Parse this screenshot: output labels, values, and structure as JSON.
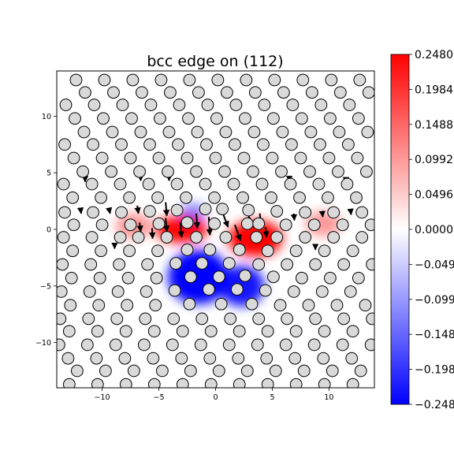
{
  "chart_data": {
    "type": "heatmap",
    "title": "bcc edge on (112)",
    "xlabel": "",
    "ylabel": "",
    "xlim": [
      -14,
      14
    ],
    "ylim": [
      -14,
      14
    ],
    "x_ticks": [
      -10,
      -5,
      0,
      5,
      10
    ],
    "y_ticks": [
      10,
      5,
      0,
      -5,
      -10
    ],
    "x_tick_labels": [
      "−10",
      "−5",
      "0",
      "5",
      "10"
    ],
    "y_tick_labels": [
      "10",
      "5",
      "0",
      "−5",
      "−10"
    ],
    "grid": false,
    "colormap": "bwr",
    "colorbar": {
      "min": -0.248,
      "max": 0.248,
      "ticks": [
        0.248,
        0.1984,
        0.1488,
        0.0992,
        0.0496,
        0.0,
        -0.0496,
        -0.0992,
        -0.1488,
        -0.1984,
        -0.248
      ],
      "tick_labels": [
        "0.2480",
        "0.1984",
        "0.1488",
        "0.0992",
        "0.0496",
        "0.0000",
        "−0.049",
        "−0.099",
        "−0.148",
        "−0.198",
        "−0.248"
      ]
    },
    "field_blobs": [
      {
        "sign": "positive",
        "x": 3.5,
        "y": -0.8,
        "sx": 2.4,
        "sy": 1.6,
        "value": 0.248
      },
      {
        "sign": "positive",
        "x": -3.0,
        "y": 0.0,
        "sx": 2.3,
        "sy": 1.2,
        "value": 0.24
      },
      {
        "sign": "positive",
        "x": -7.2,
        "y": 0.3,
        "sx": 1.6,
        "sy": 1.1,
        "value": 0.06
      },
      {
        "sign": "positive",
        "x": 9.5,
        "y": 0.5,
        "sx": 1.6,
        "sy": 1.1,
        "value": 0.05
      },
      {
        "sign": "negative",
        "x": -1.5,
        "y": -4.2,
        "sx": 2.7,
        "sy": 2.4,
        "value": -0.248
      },
      {
        "sign": "negative",
        "x": 2.3,
        "y": -5.0,
        "sx": 2.0,
        "sy": 1.8,
        "value": -0.22
      },
      {
        "sign": "negative",
        "x": -2.0,
        "y": 1.5,
        "sx": 1.2,
        "sy": 0.8,
        "value": -0.08
      }
    ],
    "atoms": [
      {
        "x": -12.3,
        "y": 13.2
      },
      {
        "x": -9.8,
        "y": 13.2
      },
      {
        "x": -7.3,
        "y": 13.2
      },
      {
        "x": -4.8,
        "y": 13.2
      },
      {
        "x": -2.3,
        "y": 13.2
      },
      {
        "x": 0.2,
        "y": 13.2
      },
      {
        "x": 2.7,
        "y": 13.2
      },
      {
        "x": 5.2,
        "y": 13.2
      },
      {
        "x": 7.7,
        "y": 13.2
      },
      {
        "x": 10.2,
        "y": 13.2
      },
      {
        "x": 12.7,
        "y": 13.2
      },
      {
        "x": -11.5,
        "y": 12.1
      },
      {
        "x": -9.0,
        "y": 12.1
      },
      {
        "x": -6.5,
        "y": 12.1
      },
      {
        "x": -4.0,
        "y": 12.1
      },
      {
        "x": -1.5,
        "y": 12.1
      },
      {
        "x": 1.0,
        "y": 12.1
      },
      {
        "x": 3.5,
        "y": 12.1
      },
      {
        "x": 6.0,
        "y": 12.1
      },
      {
        "x": 8.5,
        "y": 12.1
      },
      {
        "x": 11.0,
        "y": 12.1
      },
      {
        "x": 13.5,
        "y": 12.1
      },
      {
        "x": -13.2,
        "y": 11.0
      },
      {
        "x": -10.7,
        "y": 11.0
      },
      {
        "x": -8.2,
        "y": 11.0
      },
      {
        "x": -5.7,
        "y": 11.0
      },
      {
        "x": -3.2,
        "y": 11.0
      },
      {
        "x": -0.7,
        "y": 11.0
      },
      {
        "x": 1.8,
        "y": 11.0
      },
      {
        "x": 4.3,
        "y": 11.0
      },
      {
        "x": 6.8,
        "y": 11.0
      },
      {
        "x": 9.3,
        "y": 11.0
      },
      {
        "x": 11.8,
        "y": 11.0
      },
      {
        "x": -12.4,
        "y": 9.8
      },
      {
        "x": -9.9,
        "y": 9.8
      },
      {
        "x": -7.4,
        "y": 9.8
      },
      {
        "x": -4.9,
        "y": 9.8
      },
      {
        "x": -2.4,
        "y": 9.8
      },
      {
        "x": 0.1,
        "y": 9.8
      },
      {
        "x": 2.6,
        "y": 9.8
      },
      {
        "x": 5.1,
        "y": 9.8
      },
      {
        "x": 7.6,
        "y": 9.8
      },
      {
        "x": 10.1,
        "y": 9.8
      },
      {
        "x": 12.6,
        "y": 9.8
      },
      {
        "x": -11.6,
        "y": 8.6
      },
      {
        "x": -9.1,
        "y": 8.6
      },
      {
        "x": -6.6,
        "y": 8.6
      },
      {
        "x": -4.1,
        "y": 8.6
      },
      {
        "x": -1.6,
        "y": 8.6
      },
      {
        "x": 0.9,
        "y": 8.6
      },
      {
        "x": 3.4,
        "y": 8.6
      },
      {
        "x": 5.9,
        "y": 8.6
      },
      {
        "x": 8.4,
        "y": 8.6
      },
      {
        "x": 10.9,
        "y": 8.6
      },
      {
        "x": 13.4,
        "y": 8.6
      },
      {
        "x": -13.3,
        "y": 7.5
      },
      {
        "x": -10.8,
        "y": 7.5
      },
      {
        "x": -8.3,
        "y": 7.5
      },
      {
        "x": -5.8,
        "y": 7.5
      },
      {
        "x": -3.3,
        "y": 7.5
      },
      {
        "x": -0.8,
        "y": 7.5
      },
      {
        "x": 1.7,
        "y": 7.5
      },
      {
        "x": 4.2,
        "y": 7.5
      },
      {
        "x": 6.7,
        "y": 7.5
      },
      {
        "x": 9.2,
        "y": 7.5
      },
      {
        "x": 11.7,
        "y": 7.5
      },
      {
        "x": -12.5,
        "y": 6.3
      },
      {
        "x": -10.0,
        "y": 6.3
      },
      {
        "x": -7.5,
        "y": 6.3
      },
      {
        "x": -5.0,
        "y": 6.3
      },
      {
        "x": -2.5,
        "y": 6.3
      },
      {
        "x": 0.0,
        "y": 6.3
      },
      {
        "x": 2.5,
        "y": 6.3
      },
      {
        "x": 5.0,
        "y": 6.3
      },
      {
        "x": 7.5,
        "y": 6.3
      },
      {
        "x": 10.0,
        "y": 6.3
      },
      {
        "x": 12.5,
        "y": 6.3
      },
      {
        "x": -11.7,
        "y": 5.1
      },
      {
        "x": -9.2,
        "y": 5.1
      },
      {
        "x": -6.7,
        "y": 5.1
      },
      {
        "x": -4.2,
        "y": 5.1
      },
      {
        "x": -1.7,
        "y": 5.1
      },
      {
        "x": 0.8,
        "y": 5.1
      },
      {
        "x": 3.3,
        "y": 5.1
      },
      {
        "x": 5.8,
        "y": 5.1
      },
      {
        "x": 8.3,
        "y": 5.1
      },
      {
        "x": 10.8,
        "y": 5.1
      },
      {
        "x": 13.3,
        "y": 5.1
      },
      {
        "x": -13.4,
        "y": 4.0
      },
      {
        "x": -10.9,
        "y": 4.0
      },
      {
        "x": -8.4,
        "y": 4.0
      },
      {
        "x": -5.9,
        "y": 4.0
      },
      {
        "x": -3.4,
        "y": 4.0
      },
      {
        "x": -0.9,
        "y": 4.0
      },
      {
        "x": 1.6,
        "y": 4.0
      },
      {
        "x": 4.1,
        "y": 4.0
      },
      {
        "x": 6.6,
        "y": 4.0
      },
      {
        "x": 9.1,
        "y": 4.0
      },
      {
        "x": 11.6,
        "y": 4.0
      },
      {
        "x": -12.6,
        "y": 2.8
      },
      {
        "x": -10.1,
        "y": 2.8
      },
      {
        "x": -7.6,
        "y": 2.8
      },
      {
        "x": -5.1,
        "y": 2.8
      },
      {
        "x": -2.6,
        "y": 2.8
      },
      {
        "x": -0.1,
        "y": 2.8
      },
      {
        "x": 2.4,
        "y": 2.8
      },
      {
        "x": 4.9,
        "y": 2.8
      },
      {
        "x": 7.4,
        "y": 2.8
      },
      {
        "x": 9.9,
        "y": 2.8
      },
      {
        "x": 12.4,
        "y": 2.8
      },
      {
        "x": -13.3,
        "y": 1.5
      },
      {
        "x": -10.8,
        "y": 1.5
      },
      {
        "x": -8.3,
        "y": 1.5
      },
      {
        "x": -5.8,
        "y": 1.6
      },
      {
        "x": -3.4,
        "y": 1.7
      },
      {
        "x": -0.9,
        "y": 1.8
      },
      {
        "x": 0.6,
        "y": 1.8
      },
      {
        "x": 2.9,
        "y": 1.7
      },
      {
        "x": 5.4,
        "y": 1.6
      },
      {
        "x": 7.9,
        "y": 1.5
      },
      {
        "x": 10.4,
        "y": 1.5
      },
      {
        "x": 12.9,
        "y": 1.5
      },
      {
        "x": -12.5,
        "y": 0.4
      },
      {
        "x": -10.0,
        "y": 0.4
      },
      {
        "x": -7.5,
        "y": 0.4
      },
      {
        "x": -5.0,
        "y": 0.5
      },
      {
        "x": -2.5,
        "y": 0.6
      },
      {
        "x": -0.1,
        "y": 0.5
      },
      {
        "x": 2.8,
        "y": 0.5
      },
      {
        "x": 3.8,
        "y": 0.5
      },
      {
        "x": 6.2,
        "y": 0.4
      },
      {
        "x": 8.7,
        "y": 0.4
      },
      {
        "x": 11.2,
        "y": 0.4
      },
      {
        "x": 13.7,
        "y": 0.4
      },
      {
        "x": -13.4,
        "y": -0.7
      },
      {
        "x": -10.9,
        "y": -0.7
      },
      {
        "x": -8.4,
        "y": -0.7
      },
      {
        "x": -6.8,
        "y": -0.7
      },
      {
        "x": -4.3,
        "y": -0.7
      },
      {
        "x": -1.7,
        "y": -0.7
      },
      {
        "x": 0.9,
        "y": -0.7
      },
      {
        "x": 3.6,
        "y": -0.7
      },
      {
        "x": 5.4,
        "y": -0.7
      },
      {
        "x": 7.9,
        "y": -0.7
      },
      {
        "x": 10.4,
        "y": -0.7
      },
      {
        "x": 12.9,
        "y": -0.7
      },
      {
        "x": -12.6,
        "y": -1.9
      },
      {
        "x": -10.1,
        "y": -1.9
      },
      {
        "x": -7.6,
        "y": -1.9
      },
      {
        "x": -5.1,
        "y": -1.9
      },
      {
        "x": -2.5,
        "y": -1.8
      },
      {
        "x": -0.5,
        "y": -1.8
      },
      {
        "x": 2.1,
        "y": -1.8
      },
      {
        "x": 4.6,
        "y": -1.9
      },
      {
        "x": 7.1,
        "y": -1.9
      },
      {
        "x": 9.6,
        "y": -1.9
      },
      {
        "x": 12.1,
        "y": -1.9
      },
      {
        "x": -13.5,
        "y": -3.1
      },
      {
        "x": -11.0,
        "y": -3.1
      },
      {
        "x": -8.5,
        "y": -3.1
      },
      {
        "x": -6.0,
        "y": -3.1
      },
      {
        "x": -3.5,
        "y": -3.0
      },
      {
        "x": -1.2,
        "y": -3.0
      },
      {
        "x": 1.2,
        "y": -3.0
      },
      {
        "x": 3.8,
        "y": -3.1
      },
      {
        "x": 6.3,
        "y": -3.1
      },
      {
        "x": 8.8,
        "y": -3.1
      },
      {
        "x": 11.3,
        "y": -3.1
      },
      {
        "x": 13.8,
        "y": -3.1
      },
      {
        "x": -12.7,
        "y": -4.3
      },
      {
        "x": -10.2,
        "y": -4.3
      },
      {
        "x": -7.7,
        "y": -4.3
      },
      {
        "x": -5.2,
        "y": -4.3
      },
      {
        "x": -2.2,
        "y": -4.2
      },
      {
        "x": 0.3,
        "y": -4.2
      },
      {
        "x": 2.6,
        "y": -4.1
      },
      {
        "x": 5.1,
        "y": -4.2
      },
      {
        "x": 7.6,
        "y": -4.3
      },
      {
        "x": 10.1,
        "y": -4.3
      },
      {
        "x": 12.6,
        "y": -4.3
      },
      {
        "x": -13.6,
        "y": -5.5
      },
      {
        "x": -11.1,
        "y": -5.5
      },
      {
        "x": -8.6,
        "y": -5.5
      },
      {
        "x": -6.1,
        "y": -5.5
      },
      {
        "x": -3.6,
        "y": -5.4
      },
      {
        "x": -0.6,
        "y": -5.3
      },
      {
        "x": 1.9,
        "y": -5.3
      },
      {
        "x": 4.4,
        "y": -5.4
      },
      {
        "x": 6.9,
        "y": -5.5
      },
      {
        "x": 9.4,
        "y": -5.5
      },
      {
        "x": 11.9,
        "y": -5.5
      },
      {
        "x": -12.8,
        "y": -6.7
      },
      {
        "x": -10.3,
        "y": -6.7
      },
      {
        "x": -7.8,
        "y": -6.7
      },
      {
        "x": -5.3,
        "y": -6.7
      },
      {
        "x": -2.3,
        "y": -6.6
      },
      {
        "x": 0.5,
        "y": -6.6
      },
      {
        "x": 3.2,
        "y": -6.6
      },
      {
        "x": 5.7,
        "y": -6.7
      },
      {
        "x": 8.2,
        "y": -6.7
      },
      {
        "x": 10.7,
        "y": -6.7
      },
      {
        "x": 13.2,
        "y": -6.7
      },
      {
        "x": -13.7,
        "y": -7.9
      },
      {
        "x": -11.2,
        "y": -7.9
      },
      {
        "x": -8.7,
        "y": -7.9
      },
      {
        "x": -6.2,
        "y": -7.9
      },
      {
        "x": -3.7,
        "y": -7.9
      },
      {
        "x": -1.2,
        "y": -7.9
      },
      {
        "x": 1.3,
        "y": -7.9
      },
      {
        "x": 3.8,
        "y": -7.9
      },
      {
        "x": 6.3,
        "y": -7.9
      },
      {
        "x": 8.8,
        "y": -7.9
      },
      {
        "x": 11.3,
        "y": -7.9
      },
      {
        "x": 13.8,
        "y": -7.9
      },
      {
        "x": -12.9,
        "y": -9.0
      },
      {
        "x": -10.4,
        "y": -9.0
      },
      {
        "x": -7.9,
        "y": -9.0
      },
      {
        "x": -5.4,
        "y": -9.0
      },
      {
        "x": -2.9,
        "y": -9.0
      },
      {
        "x": -0.4,
        "y": -9.0
      },
      {
        "x": 2.1,
        "y": -9.0
      },
      {
        "x": 4.6,
        "y": -9.0
      },
      {
        "x": 7.1,
        "y": -9.0
      },
      {
        "x": 9.6,
        "y": -9.0
      },
      {
        "x": 12.1,
        "y": -9.0
      },
      {
        "x": -13.8,
        "y": -10.2
      },
      {
        "x": -11.3,
        "y": -10.2
      },
      {
        "x": -8.8,
        "y": -10.2
      },
      {
        "x": -6.3,
        "y": -10.2
      },
      {
        "x": -3.8,
        "y": -10.2
      },
      {
        "x": -1.3,
        "y": -10.2
      },
      {
        "x": 1.2,
        "y": -10.2
      },
      {
        "x": 3.7,
        "y": -10.2
      },
      {
        "x": 6.2,
        "y": -10.2
      },
      {
        "x": 8.7,
        "y": -10.2
      },
      {
        "x": 11.2,
        "y": -10.2
      },
      {
        "x": 13.7,
        "y": -10.2
      },
      {
        "x": -13.0,
        "y": -11.4
      },
      {
        "x": -10.5,
        "y": -11.4
      },
      {
        "x": -8.0,
        "y": -11.4
      },
      {
        "x": -5.5,
        "y": -11.4
      },
      {
        "x": -3.0,
        "y": -11.4
      },
      {
        "x": -0.5,
        "y": -11.4
      },
      {
        "x": 2.0,
        "y": -11.4
      },
      {
        "x": 4.5,
        "y": -11.4
      },
      {
        "x": 7.0,
        "y": -11.4
      },
      {
        "x": 9.5,
        "y": -11.4
      },
      {
        "x": 12.0,
        "y": -11.4
      },
      {
        "x": -12.2,
        "y": -12.5
      },
      {
        "x": -9.7,
        "y": -12.5
      },
      {
        "x": -7.2,
        "y": -12.5
      },
      {
        "x": -4.7,
        "y": -12.5
      },
      {
        "x": -2.2,
        "y": -12.5
      },
      {
        "x": 0.3,
        "y": -12.5
      },
      {
        "x": 2.8,
        "y": -12.5
      },
      {
        "x": 5.3,
        "y": -12.5
      },
      {
        "x": 7.8,
        "y": -12.5
      },
      {
        "x": 10.3,
        "y": -12.5
      },
      {
        "x": 12.8,
        "y": -12.5
      },
      {
        "x": -12.9,
        "y": -13.7
      },
      {
        "x": -10.4,
        "y": -13.7
      },
      {
        "x": -7.9,
        "y": -13.7
      },
      {
        "x": -5.4,
        "y": -13.7
      },
      {
        "x": -2.9,
        "y": -13.7
      },
      {
        "x": -0.4,
        "y": -13.7
      },
      {
        "x": 2.1,
        "y": -13.7
      },
      {
        "x": 4.6,
        "y": -13.7
      },
      {
        "x": 7.1,
        "y": -13.7
      },
      {
        "x": 9.6,
        "y": -13.7
      },
      {
        "x": 12.1,
        "y": -13.7
      }
    ],
    "displacement_vectors": [
      {
        "x": -11.9,
        "y": 1.8,
        "dx": 0.05,
        "dy": -0.4
      },
      {
        "x": -9.4,
        "y": 1.9,
        "dx": 0.1,
        "dy": -0.5
      },
      {
        "x": -6.9,
        "y": 2.1,
        "dx": 0.1,
        "dy": -0.7
      },
      {
        "x": -4.4,
        "y": 2.4,
        "dx": 0.1,
        "dy": -1.2
      },
      {
        "x": -6.7,
        "y": 0.6,
        "dx": 0.1,
        "dy": -0.8
      },
      {
        "x": -4.4,
        "y": 1.0,
        "dx": 0.1,
        "dy": -1.2
      },
      {
        "x": -1.7,
        "y": 1.4,
        "dx": 0.1,
        "dy": -1.3
      },
      {
        "x": -0.6,
        "y": 1.1,
        "dx": 0.1,
        "dy": -1.6
      },
      {
        "x": -3.1,
        "y": 0.6,
        "dx": 0.1,
        "dy": -1.3
      },
      {
        "x": -5.6,
        "y": 0.1,
        "dx": 0.05,
        "dy": -0.9
      },
      {
        "x": 0.5,
        "y": 1.8,
        "dx": 0.6,
        "dy": -1.6
      },
      {
        "x": 1.7,
        "y": 0.4,
        "dx": 0.5,
        "dy": -1.4
      },
      {
        "x": 2.9,
        "y": 1.2,
        "dx": 0.5,
        "dy": -1.0
      },
      {
        "x": 3.9,
        "y": 1.4,
        "dx": 0.1,
        "dy": -1.0
      },
      {
        "x": 4.4,
        "y": 0.2,
        "dx": 0.1,
        "dy": -0.9
      },
      {
        "x": 6.9,
        "y": 1.4,
        "dx": 0.05,
        "dy": -0.6
      },
      {
        "x": 9.4,
        "y": 1.6,
        "dx": 0.05,
        "dy": -0.5
      },
      {
        "x": 11.9,
        "y": 1.7,
        "dx": 0.05,
        "dy": -0.4
      },
      {
        "x": -11.5,
        "y": 4.4,
        "dx": 0.0,
        "dy": -0.2
      },
      {
        "x": -6.6,
        "y": 4.6,
        "dx": 0.0,
        "dy": -0.3
      },
      {
        "x": -4.1,
        "y": 4.7,
        "dx": 0.0,
        "dy": -0.4
      },
      {
        "x": 6.5,
        "y": 4.5,
        "dx": 0.0,
        "dy": -0.3
      },
      {
        "x": 11.5,
        "y": 4.3,
        "dx": 0.0,
        "dy": -0.2
      },
      {
        "x": -8.9,
        "y": -1.4,
        "dx": 0.0,
        "dy": -0.3
      },
      {
        "x": 8.8,
        "y": -1.5,
        "dx": 0.0,
        "dy": -0.3
      }
    ]
  }
}
